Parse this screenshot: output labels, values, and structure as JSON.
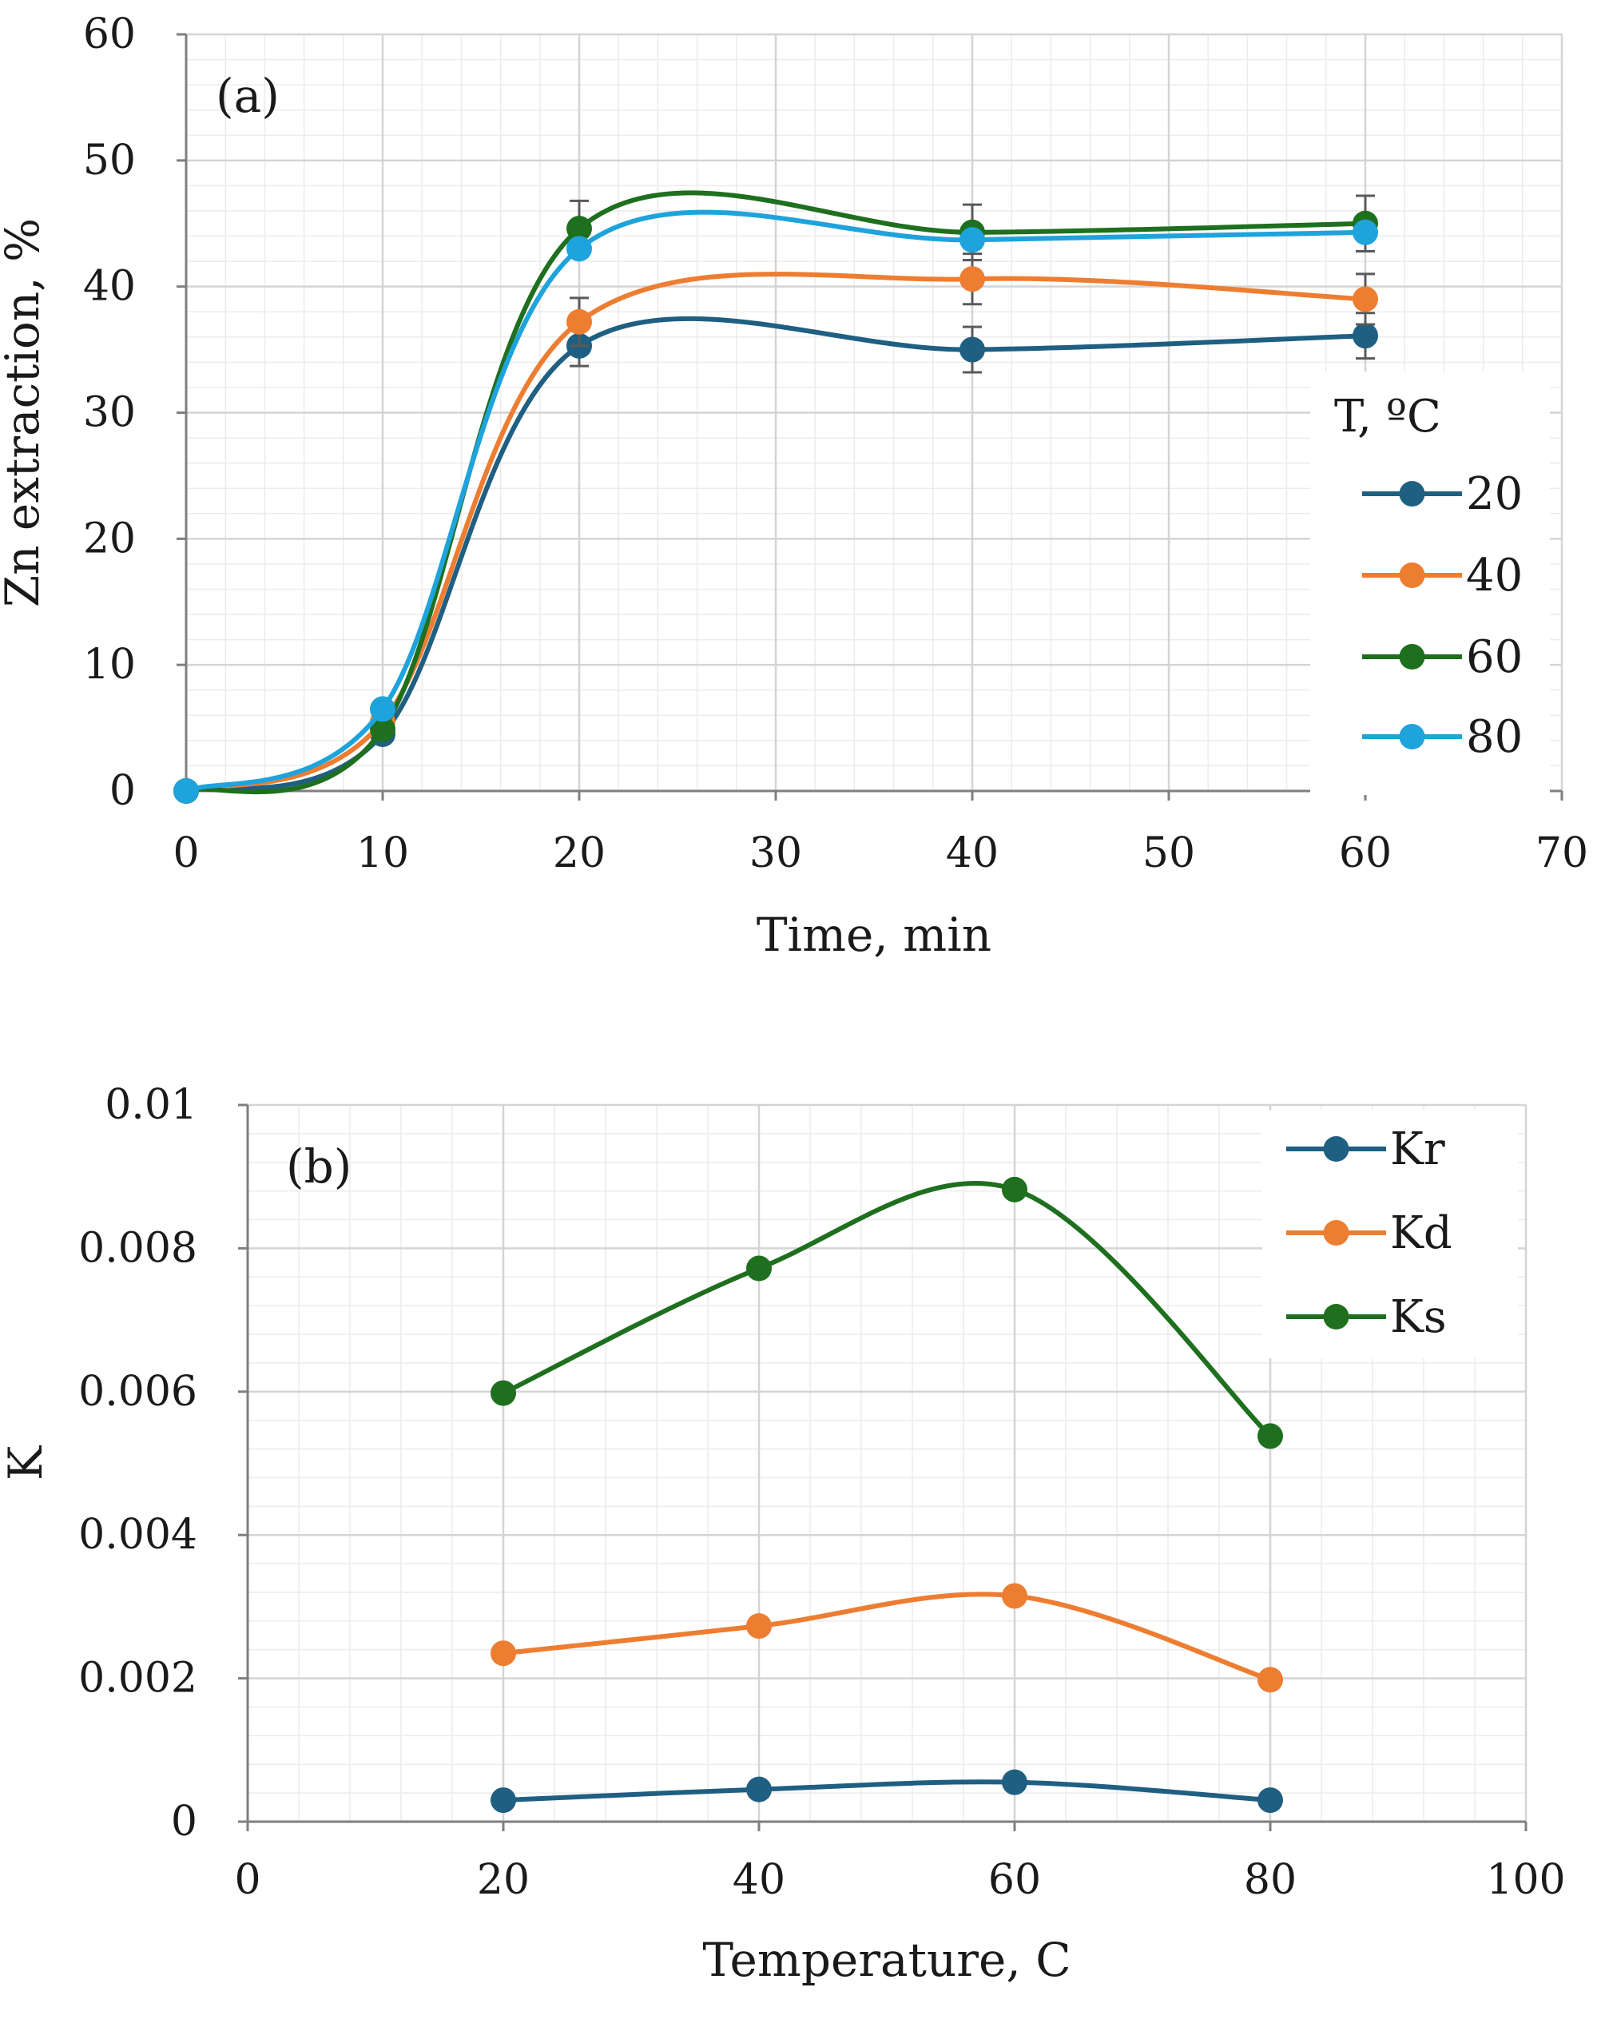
{
  "chart_data": [
    {
      "type": "line",
      "panel_label": "(a)",
      "xlabel": "Time, min",
      "ylabel": "Zn extraction, %",
      "xlim": [
        0,
        70
      ],
      "ylim": [
        0,
        60
      ],
      "x_ticks": [
        "0",
        "10",
        "20",
        "30",
        "40",
        "50",
        "60",
        "70"
      ],
      "y_ticks": [
        "0",
        "10",
        "20",
        "30",
        "40",
        "50",
        "60"
      ],
      "grid": true,
      "minor_grid": true,
      "legend_title": "T, ºC",
      "legend_position": "right",
      "x": [
        0,
        10,
        20,
        40,
        60
      ],
      "series": [
        {
          "name": "20",
          "color": "#1f5f82",
          "values": [
            0,
            4.5,
            35.3,
            35.0,
            36.1
          ],
          "errors": [
            0,
            0,
            1.6,
            1.8,
            1.8
          ]
        },
        {
          "name": "40",
          "color": "#ed7d31",
          "values": [
            0,
            5.5,
            37.2,
            40.6,
            39.0
          ],
          "errors": [
            0,
            0,
            1.9,
            2.0,
            2.0
          ]
        },
        {
          "name": "60",
          "color": "#1e6f1e",
          "values": [
            0,
            4.9,
            44.6,
            44.3,
            45.0
          ],
          "errors": [
            0,
            0,
            2.2,
            2.2,
            2.2
          ]
        },
        {
          "name": "80",
          "color": "#1ea3dc",
          "values": [
            0,
            6.5,
            43.0,
            43.7,
            44.3
          ],
          "errors": [
            0,
            0,
            0,
            0,
            0
          ]
        }
      ]
    },
    {
      "type": "line",
      "panel_label": "(b)",
      "xlabel": "Temperature, C",
      "ylabel": "K",
      "xlim": [
        0,
        100
      ],
      "ylim": [
        0,
        0.01
      ],
      "x_ticks": [
        "0",
        "20",
        "40",
        "60",
        "80",
        "100"
      ],
      "y_ticks": [
        "0",
        "0.002",
        "0.004",
        "0.006",
        "0.008",
        "0.01"
      ],
      "grid": true,
      "minor_grid": true,
      "legend_position": "top-right",
      "x": [
        20,
        40,
        60,
        80
      ],
      "series": [
        {
          "name": "Kr",
          "color": "#1f5f82",
          "values": [
            0.0003,
            0.00045,
            0.00055,
            0.0003
          ]
        },
        {
          "name": "Kd",
          "color": "#ed7d31",
          "values": [
            0.00235,
            0.00273,
            0.00315,
            0.00198
          ]
        },
        {
          "name": "Ks",
          "color": "#1e6f1e",
          "values": [
            0.00598,
            0.00772,
            0.00882,
            0.00538
          ]
        }
      ]
    }
  ]
}
